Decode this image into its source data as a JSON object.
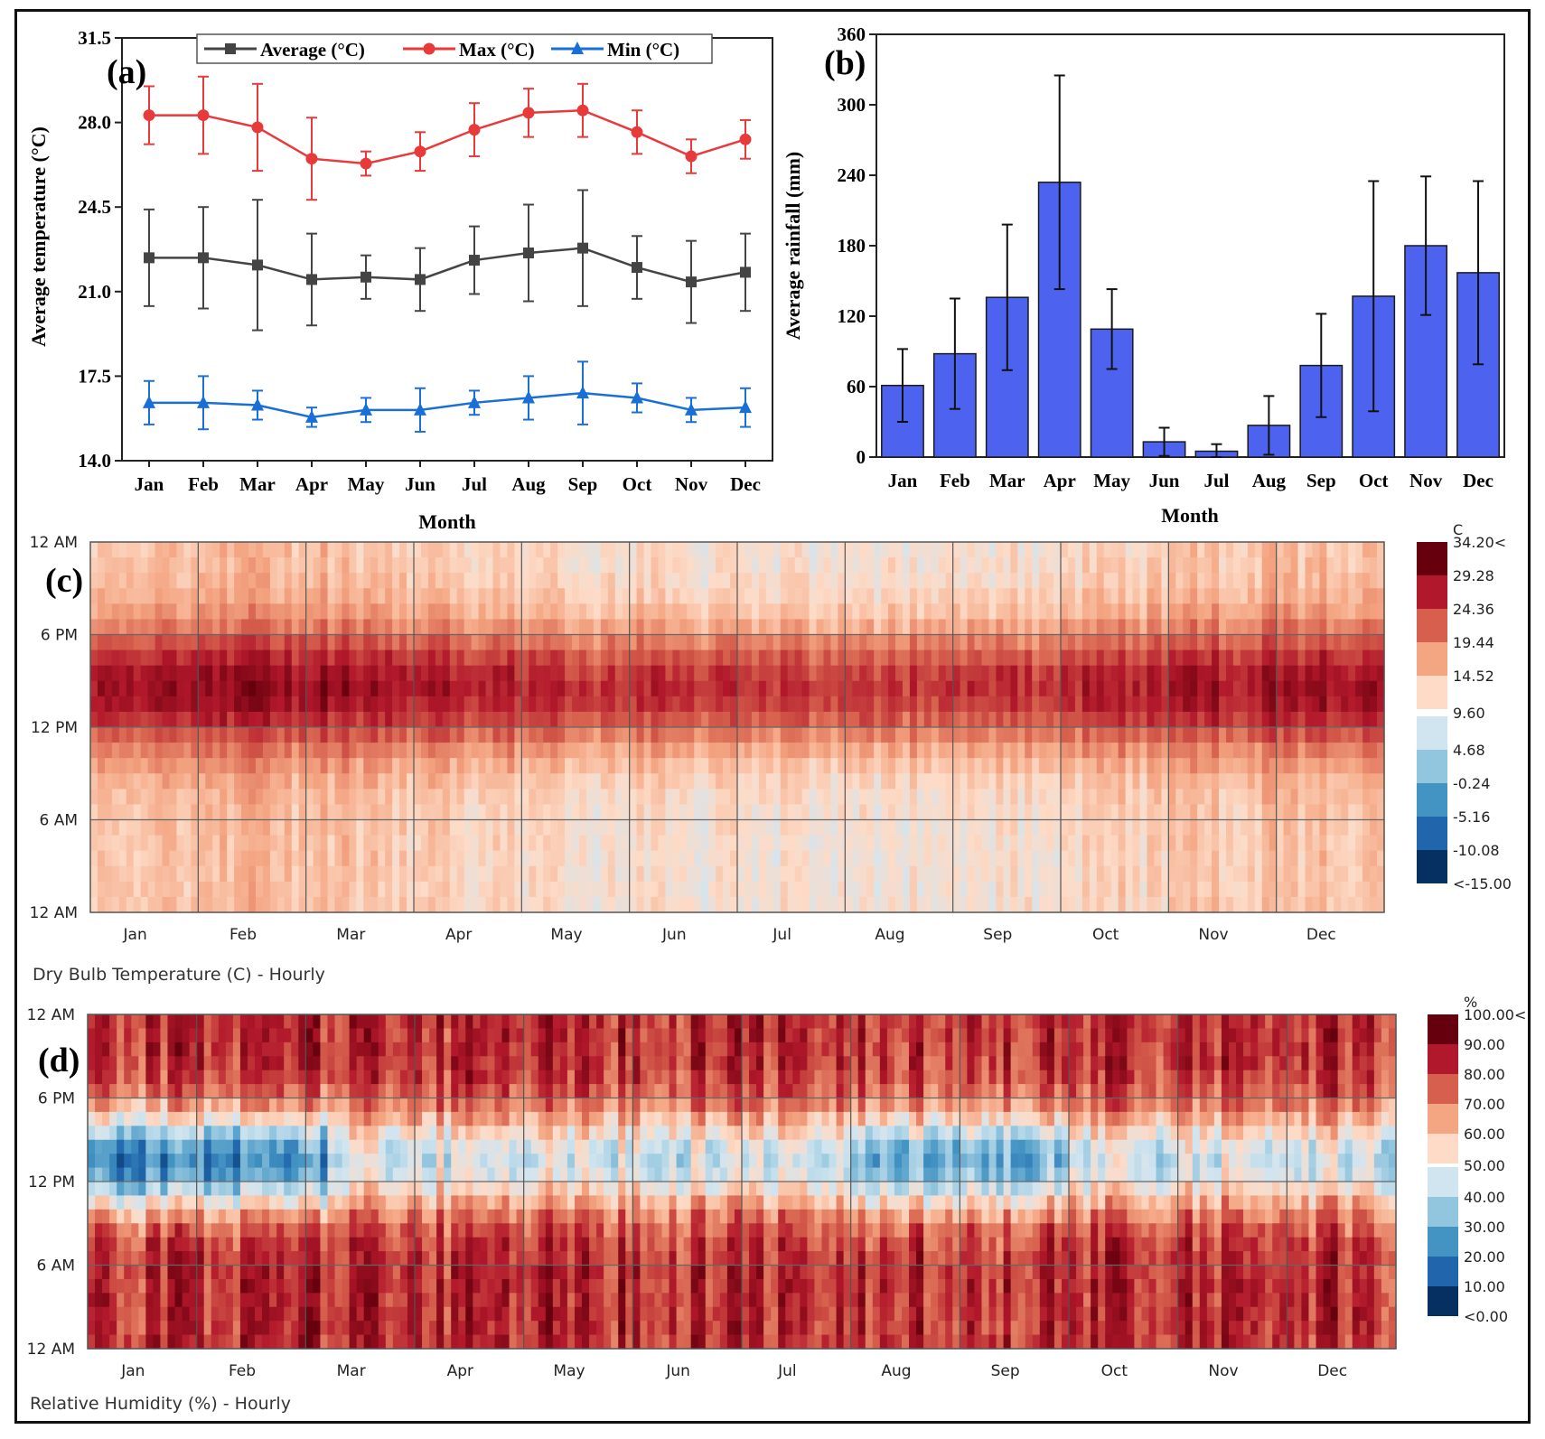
{
  "chart_data": [
    {
      "panel": "(a)",
      "type": "line",
      "xlabel": "Month",
      "ylabel": "Average temperature (°C)",
      "ylim": [
        14.0,
        31.5
      ],
      "yticks": [
        "14.0",
        "17.5",
        "21.0",
        "24.5",
        "28.0",
        "31.5"
      ],
      "categories": [
        "Jan",
        "Feb",
        "Mar",
        "Apr",
        "May",
        "Jun",
        "Jul",
        "Aug",
        "Sep",
        "Oct",
        "Nov",
        "Dec"
      ],
      "legend": {
        "placement": "top",
        "entries": [
          "Average (°C)",
          "Max (°C)",
          "Min (°C)"
        ]
      },
      "series": [
        {
          "name": "Average (°C)",
          "color": "#444444",
          "marker": "square",
          "values": [
            22.4,
            22.4,
            22.1,
            21.5,
            21.6,
            21.5,
            22.3,
            22.6,
            22.8,
            22.0,
            21.4,
            21.8
          ],
          "err": [
            2.0,
            2.1,
            2.7,
            1.9,
            0.9,
            1.3,
            1.4,
            2.0,
            2.4,
            1.3,
            1.7,
            1.6
          ]
        },
        {
          "name": "Max (°C)",
          "color": "#e83a3a",
          "marker": "circle",
          "values": [
            28.3,
            28.3,
            27.8,
            26.5,
            26.3,
            26.8,
            27.7,
            28.4,
            28.5,
            27.6,
            26.6,
            27.3
          ],
          "err": [
            1.2,
            1.6,
            1.8,
            1.7,
            0.5,
            0.8,
            1.1,
            1.0,
            1.1,
            0.9,
            0.7,
            0.8
          ]
        },
        {
          "name": "Min (°C)",
          "color": "#1a6fd6",
          "marker": "triangle",
          "values": [
            16.4,
            16.4,
            16.3,
            15.8,
            16.1,
            16.1,
            16.4,
            16.6,
            16.8,
            16.6,
            16.1,
            16.2
          ],
          "err": [
            0.9,
            1.1,
            0.6,
            0.4,
            0.5,
            0.9,
            0.5,
            0.9,
            1.3,
            0.6,
            0.5,
            0.8
          ]
        }
      ]
    },
    {
      "panel": "(b)",
      "type": "bar",
      "xlabel": "Month",
      "ylabel": "Average rainfall (mm)",
      "ylim": [
        0,
        360
      ],
      "yticks": [
        "0",
        "60",
        "120",
        "180",
        "240",
        "300",
        "360"
      ],
      "categories": [
        "Jan",
        "Feb",
        "Mar",
        "Apr",
        "May",
        "Jun",
        "Jul",
        "Aug",
        "Sep",
        "Oct",
        "Nov",
        "Dec"
      ],
      "bar_color": "#4d63f0",
      "values": [
        61,
        88,
        136,
        234,
        109,
        13,
        5,
        27,
        78,
        137,
        180,
        157
      ],
      "err": [
        31,
        47,
        62,
        91,
        34,
        12,
        6,
        25,
        44,
        98,
        59,
        78
      ]
    },
    {
      "panel": "(c)",
      "type": "heatmap",
      "title": "Dry Bulb Temperature (C) - Hourly",
      "yticks": [
        "12 AM",
        "6 PM",
        "12 PM",
        "6 AM",
        "12 AM"
      ],
      "months": [
        "Jan",
        "Feb",
        "Mar",
        "Apr",
        "May",
        "Jun",
        "Jul",
        "Aug",
        "Sep",
        "Oct",
        "Nov",
        "Dec"
      ],
      "colorbar_unit": "C",
      "colorbar_labels": [
        "34.20<",
        "29.28",
        "24.36",
        "19.44",
        "14.52",
        "9.60",
        "4.68",
        "-0.24",
        "-5.16",
        "-10.08",
        "<-15.00"
      ],
      "colorbar_colors": [
        "#67000d",
        "#b2182b",
        "#d6604d",
        "#f4a582",
        "#fddbc7",
        "#d1e5f0",
        "#92c5de",
        "#4393c3",
        "#2166ac",
        "#053061"
      ]
    },
    {
      "panel": "(d)",
      "type": "heatmap",
      "title": "Relative Humidity (%) - Hourly",
      "yticks": [
        "12 AM",
        "6 PM",
        "12 PM",
        "6 AM",
        "12 AM"
      ],
      "months": [
        "Jan",
        "Feb",
        "Mar",
        "Apr",
        "May",
        "Jun",
        "Jul",
        "Aug",
        "Sep",
        "Oct",
        "Nov",
        "Dec"
      ],
      "colorbar_unit": "%",
      "colorbar_labels": [
        "100.00<",
        "90.00",
        "80.00",
        "70.00",
        "60.00",
        "50.00",
        "40.00",
        "30.00",
        "20.00",
        "10.00",
        "<0.00"
      ],
      "colorbar_colors": [
        "#67000d",
        "#b2182b",
        "#d6604d",
        "#f4a582",
        "#fddbc7",
        "#d1e5f0",
        "#92c5de",
        "#4393c3",
        "#2166ac",
        "#053061"
      ]
    }
  ]
}
